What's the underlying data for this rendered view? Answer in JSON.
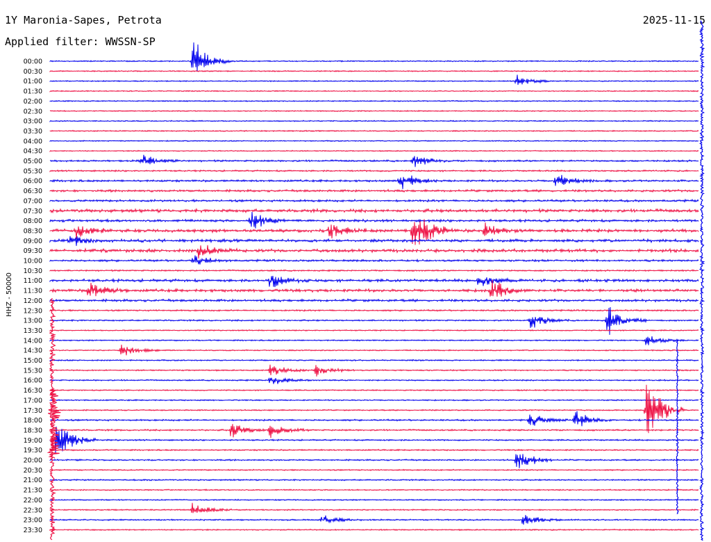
{
  "header": {
    "title": "1Y Maronia-Sapes, Petrota",
    "date": "2025-11-15",
    "filter": "Applied filter: WWSSN-SP"
  },
  "chart_data": {
    "type": "line",
    "ylabel": "HHZ - 50000",
    "row_labels": [
      "00:00",
      "00:30",
      "01:00",
      "01:30",
      "02:00",
      "02:30",
      "03:00",
      "03:30",
      "04:00",
      "04:30",
      "05:00",
      "05:30",
      "06:00",
      "06:30",
      "07:00",
      "07:30",
      "08:00",
      "08:30",
      "09:00",
      "09:30",
      "10:00",
      "10:30",
      "11:00",
      "11:30",
      "12:00",
      "12:30",
      "13:00",
      "13:30",
      "14:00",
      "14:30",
      "15:00",
      "15:30",
      "16:00",
      "16:30",
      "17:00",
      "17:30",
      "18:00",
      "18:30",
      "19:00",
      "19:30",
      "20:00",
      "20:30",
      "21:00",
      "21:30",
      "22:00",
      "22:30",
      "23:00",
      "23:30"
    ],
    "series_colors": [
      "#0000ee",
      "#ee1144"
    ],
    "trace_activity": [
      0.05,
      0.04,
      0.04,
      0.03,
      0.04,
      0.04,
      0.04,
      0.05,
      0.03,
      0.03,
      0.15,
      0.12,
      0.18,
      0.22,
      0.2,
      0.35,
      0.25,
      0.35,
      0.3,
      0.35,
      0.18,
      0.1,
      0.3,
      0.3,
      0.25,
      0.1,
      0.1,
      0.05,
      0.06,
      0.05,
      0.08,
      0.07,
      0.08,
      0.06,
      0.06,
      0.06,
      0.12,
      0.12,
      0.1,
      0.08,
      0.1,
      0.06,
      0.08,
      0.06,
      0.06,
      0.06,
      0.08,
      0.06
    ],
    "events": [
      {
        "row": 0,
        "t": 0.22,
        "amp": 38
      },
      {
        "row": 2,
        "t": 0.72,
        "amp": 10
      },
      {
        "row": 10,
        "t": 0.14,
        "amp": 12
      },
      {
        "row": 10,
        "t": 0.56,
        "amp": 12
      },
      {
        "row": 12,
        "t": 0.54,
        "amp": 18
      },
      {
        "row": 12,
        "t": 0.78,
        "amp": 14
      },
      {
        "row": 16,
        "t": 0.31,
        "amp": 22
      },
      {
        "row": 17,
        "t": 0.04,
        "amp": 16
      },
      {
        "row": 17,
        "t": 0.43,
        "amp": 14
      },
      {
        "row": 17,
        "t": 0.56,
        "amp": 50
      },
      {
        "row": 17,
        "t": 0.67,
        "amp": 12
      },
      {
        "row": 18,
        "t": 0.03,
        "amp": 12
      },
      {
        "row": 19,
        "t": 0.23,
        "amp": 14
      },
      {
        "row": 20,
        "t": 0.22,
        "amp": 10
      },
      {
        "row": 22,
        "t": 0.34,
        "amp": 14
      },
      {
        "row": 22,
        "t": 0.66,
        "amp": 16
      },
      {
        "row": 23,
        "t": 0.06,
        "amp": 16
      },
      {
        "row": 23,
        "t": 0.68,
        "amp": 18
      },
      {
        "row": 26,
        "t": 0.74,
        "amp": 16
      },
      {
        "row": 26,
        "t": 0.86,
        "amp": 28
      },
      {
        "row": 28,
        "t": 0.92,
        "amp": 10
      },
      {
        "row": 29,
        "t": 0.11,
        "amp": 10
      },
      {
        "row": 31,
        "t": 0.34,
        "amp": 10
      },
      {
        "row": 31,
        "t": 0.41,
        "amp": 10
      },
      {
        "row": 32,
        "t": 0.34,
        "amp": 10
      },
      {
        "row": 35,
        "t": 0.92,
        "amp": 60
      },
      {
        "row": 36,
        "t": 0.74,
        "amp": 12
      },
      {
        "row": 36,
        "t": 0.81,
        "amp": 16
      },
      {
        "row": 37,
        "t": 0.28,
        "amp": 14
      },
      {
        "row": 37,
        "t": 0.34,
        "amp": 12
      },
      {
        "row": 38,
        "t": 0.01,
        "amp": 40
      },
      {
        "row": 40,
        "t": 0.72,
        "amp": 22
      },
      {
        "row": 45,
        "t": 0.22,
        "amp": 12
      },
      {
        "row": 46,
        "t": 0.42,
        "amp": 8
      },
      {
        "row": 46,
        "t": 0.73,
        "amp": 12
      }
    ]
  }
}
